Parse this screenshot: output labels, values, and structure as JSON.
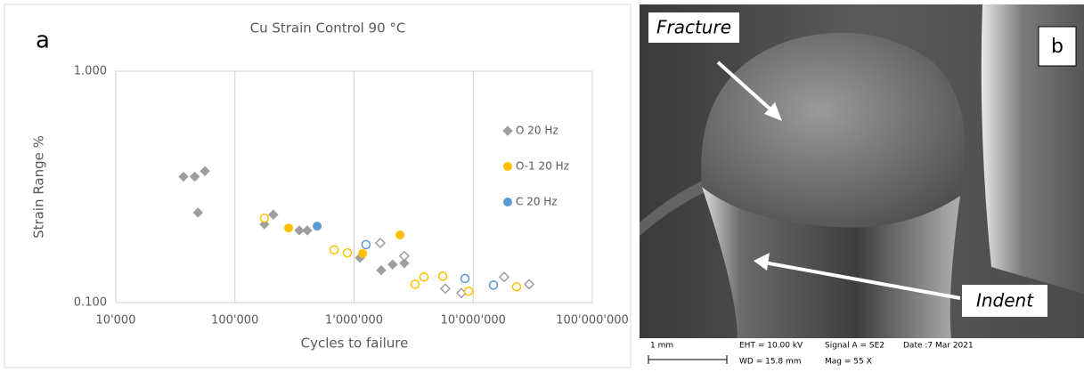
{
  "chart_data": {
    "type": "scatter",
    "panel_label": "a",
    "title": "Cu Strain Control 90 °C",
    "x_label": "Cycles to failure",
    "y_label": "Strain Range %",
    "xscale": "log",
    "yscale": "log",
    "grid": true,
    "legend": "right",
    "xlim": [
      10000,
      100000000
    ],
    "ylim": [
      0.1,
      1.0
    ],
    "xticks": [
      {
        "value": 10000,
        "label": "10'000"
      },
      {
        "value": 100000,
        "label": "100'000"
      },
      {
        "value": 1000000,
        "label": "1'000'000"
      },
      {
        "value": 10000000,
        "label": "10'000'000"
      },
      {
        "value": 100000000,
        "label": "100'000'000"
      }
    ],
    "yticks": [
      {
        "value": 0.1,
        "label": "0.100"
      },
      {
        "value": 1.0,
        "label": "1.000"
      }
    ],
    "series": [
      {
        "name": "O 20 Hz",
        "color": "#9e9e9e",
        "marker": "diamond",
        "x": [
          37000,
          46000,
          56000,
          49000,
          177000,
          210000,
          347000,
          405000,
          1120000,
          1690000,
          2110000,
          2640000,
          1660000,
          2640000,
          5830000,
          7960000,
          18200000,
          29500000
        ],
        "y": [
          0.35,
          0.35,
          0.37,
          0.245,
          0.218,
          0.24,
          0.205,
          0.205,
          0.156,
          0.138,
          0.146,
          0.148,
          0.181,
          0.159,
          0.115,
          0.11,
          0.129,
          0.12
        ],
        "open": [
          false,
          false,
          false,
          false,
          false,
          false,
          false,
          false,
          false,
          false,
          false,
          false,
          true,
          true,
          true,
          true,
          true,
          true
        ]
      },
      {
        "name": "O-1 20 Hz",
        "color": "#ffc000",
        "marker": "circle",
        "x": [
          282000,
          1180000,
          2430000,
          177000,
          680000,
          880000,
          3250000,
          3860000,
          5550000,
          9150000,
          23100000
        ],
        "y": [
          0.21,
          0.163,
          0.196,
          0.232,
          0.169,
          0.164,
          0.12,
          0.129,
          0.13,
          0.112,
          0.117
        ],
        "open": [
          false,
          false,
          false,
          true,
          true,
          true,
          true,
          true,
          true,
          true,
          true
        ]
      },
      {
        "name": "C 20 Hz",
        "color": "#5b9bd5",
        "marker": "circle",
        "x": [
          490000,
          1260000,
          8530000,
          14800000
        ],
        "y": [
          0.214,
          0.178,
          0.127,
          0.119
        ],
        "open": [
          false,
          true,
          true,
          true
        ]
      }
    ]
  },
  "image_panel": {
    "panel_label": "b",
    "annotations": [
      "Fracture",
      "Indent"
    ],
    "footer": {
      "scale": "1 mm",
      "eht": "EHT = 10.00 kV",
      "wd": "WD = 15.8 mm",
      "signal": "Signal A = SE2",
      "mag": "Mag =    55 X",
      "date": "Date :7 Mar 2021"
    }
  }
}
